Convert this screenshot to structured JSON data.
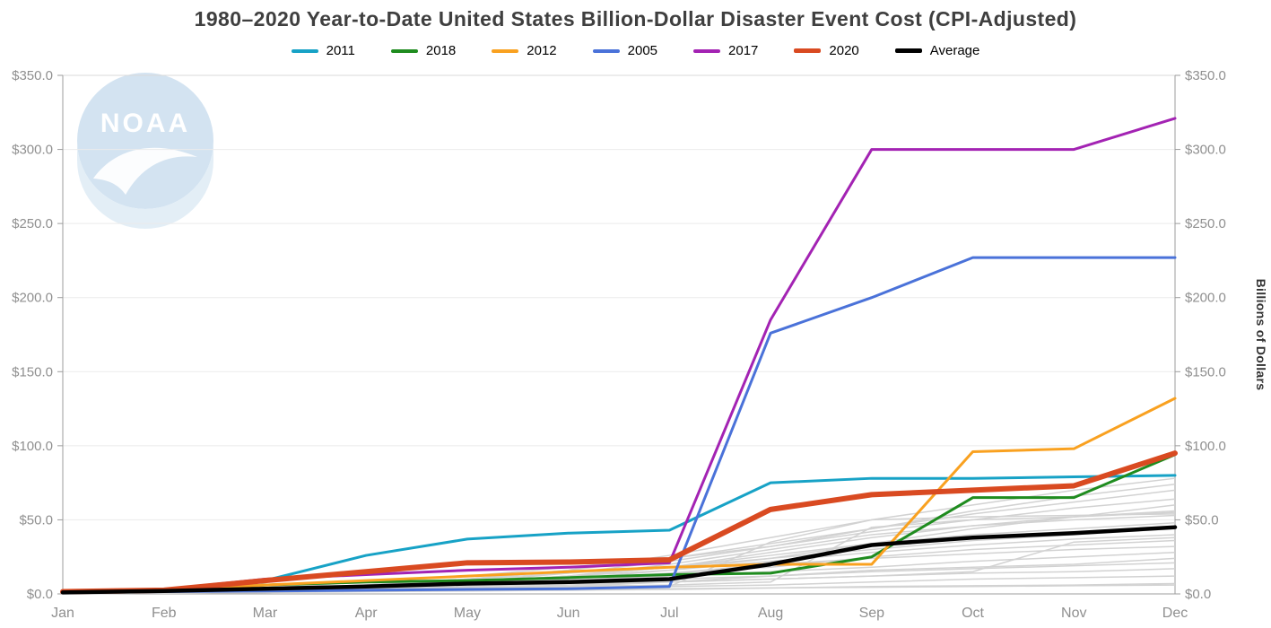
{
  "title": "1980–2020 Year-to-Date United States Billion-Dollar Disaster Event Cost (CPI-Adjusted)",
  "watermark": {
    "text": "NOAA"
  },
  "chart_data": {
    "type": "line",
    "title": "1980–2020 Year-to-Date United States Billion-Dollar Disaster Event Cost (CPI-Adjusted)",
    "x": [
      "Jan",
      "Feb",
      "Mar",
      "Apr",
      "May",
      "Jun",
      "Jul",
      "Aug",
      "Sep",
      "Oct",
      "Nov",
      "Dec"
    ],
    "xlabel": "",
    "ylabel": "Billions of Dollars",
    "ylim": [
      0,
      350
    ],
    "y_step": 50,
    "y_ticks": [
      "$0.0",
      "$50.0",
      "$100.0",
      "$150.0",
      "$200.0",
      "$250.0",
      "$300.0",
      "$350.0"
    ],
    "grid": true,
    "legend_position": "top",
    "series": [
      {
        "name": "2011",
        "color": "#17a2c6",
        "width": 3,
        "values": [
          1.5,
          2.5,
          9,
          26,
          37,
          41,
          43,
          75,
          78,
          78,
          79,
          80
        ]
      },
      {
        "name": "2018",
        "color": "#1f8c1f",
        "width": 3,
        "values": [
          1,
          2,
          6,
          8,
          9,
          11,
          13,
          14,
          25,
          65,
          65,
          94
        ]
      },
      {
        "name": "2012",
        "color": "#f9a120",
        "width": 3,
        "values": [
          1.5,
          2.5,
          6,
          9,
          12,
          15,
          18,
          20,
          20,
          96,
          98,
          132
        ]
      },
      {
        "name": "2005",
        "color": "#4a72d9",
        "width": 3,
        "values": [
          1,
          1.5,
          2,
          2.5,
          3,
          3.5,
          5,
          176,
          200,
          227,
          227,
          227
        ]
      },
      {
        "name": "2017",
        "color": "#a323b3",
        "width": 3,
        "values": [
          2,
          3,
          10,
          13,
          16,
          18,
          21,
          185,
          300,
          300,
          300,
          321
        ]
      },
      {
        "name": "2020",
        "color": "#d94a21",
        "width": 6,
        "values": [
          1.5,
          2.5,
          9,
          15,
          21,
          21.5,
          23,
          57,
          67,
          70,
          73,
          95
        ]
      },
      {
        "name": "Average",
        "color": "#000000",
        "width": 4.5,
        "values": [
          1,
          2,
          3.5,
          5,
          7,
          8,
          10,
          20,
          33,
          38,
          41,
          45
        ]
      }
    ],
    "background_series": {
      "label": "other-years-1980-2020",
      "color": "#d2d2d2",
      "width": 1.5,
      "values": [
        [
          0.5,
          0.8,
          1,
          1.5,
          2,
          2.5,
          3,
          4,
          5,
          5.5,
          6,
          7
        ],
        [
          0.3,
          0.5,
          1,
          2,
          3,
          4,
          5,
          6,
          8,
          10,
          11,
          12
        ],
        [
          1,
          1.5,
          2,
          3,
          5,
          7,
          8,
          10,
          12,
          14,
          15,
          17
        ],
        [
          0.5,
          1,
          2,
          4,
          6,
          8,
          10,
          12,
          15,
          17,
          19,
          21
        ],
        [
          0.2,
          0.5,
          1,
          2,
          3,
          5,
          8,
          12,
          16,
          18,
          20,
          24
        ],
        [
          1,
          2,
          3,
          4,
          6,
          9,
          12,
          15,
          18,
          22,
          25,
          28
        ],
        [
          0.5,
          1,
          2,
          3,
          5,
          8,
          14,
          20,
          24,
          27,
          30,
          32
        ],
        [
          0.3,
          0.8,
          2,
          4,
          7,
          10,
          14,
          18,
          25,
          30,
          33,
          36
        ],
        [
          1,
          2,
          4,
          6,
          8,
          12,
          16,
          22,
          28,
          33,
          37,
          40
        ],
        [
          0.5,
          1,
          3,
          6,
          10,
          14,
          18,
          24,
          30,
          36,
          40,
          44
        ],
        [
          0.4,
          1,
          2,
          5,
          8,
          12,
          18,
          26,
          34,
          40,
          44,
          48
        ],
        [
          1,
          2,
          3,
          5,
          8,
          12,
          20,
          30,
          40,
          46,
          50,
          53
        ],
        [
          0.5,
          1,
          2,
          4,
          7,
          12,
          18,
          28,
          38,
          46,
          52,
          56
        ],
        [
          0.3,
          0.6,
          1.5,
          3,
          6,
          10,
          16,
          24,
          34,
          44,
          52,
          60
        ],
        [
          1,
          2,
          4,
          8,
          12,
          18,
          24,
          32,
          42,
          50,
          58,
          64
        ],
        [
          0.5,
          1.5,
          3,
          6,
          10,
          16,
          24,
          34,
          44,
          54,
          62,
          70
        ],
        [
          0.4,
          1,
          2,
          4,
          8,
          14,
          22,
          32,
          44,
          56,
          66,
          74
        ],
        [
          1,
          2,
          3,
          6,
          10,
          16,
          26,
          38,
          50,
          60,
          70,
          78
        ],
        [
          0.5,
          1,
          2,
          3,
          4,
          5,
          6,
          8,
          45,
          50,
          52,
          55
        ],
        [
          0.3,
          0.5,
          1,
          2,
          3,
          4,
          5,
          35,
          50,
          52,
          53,
          54
        ],
        [
          0.5,
          1,
          1.5,
          2,
          2.5,
          3,
          3.5,
          4,
          4.5,
          5,
          5.5,
          6
        ],
        [
          0.3,
          0.7,
          1.5,
          2.5,
          4,
          6,
          8,
          10,
          12,
          15,
          35,
          38
        ]
      ]
    }
  }
}
